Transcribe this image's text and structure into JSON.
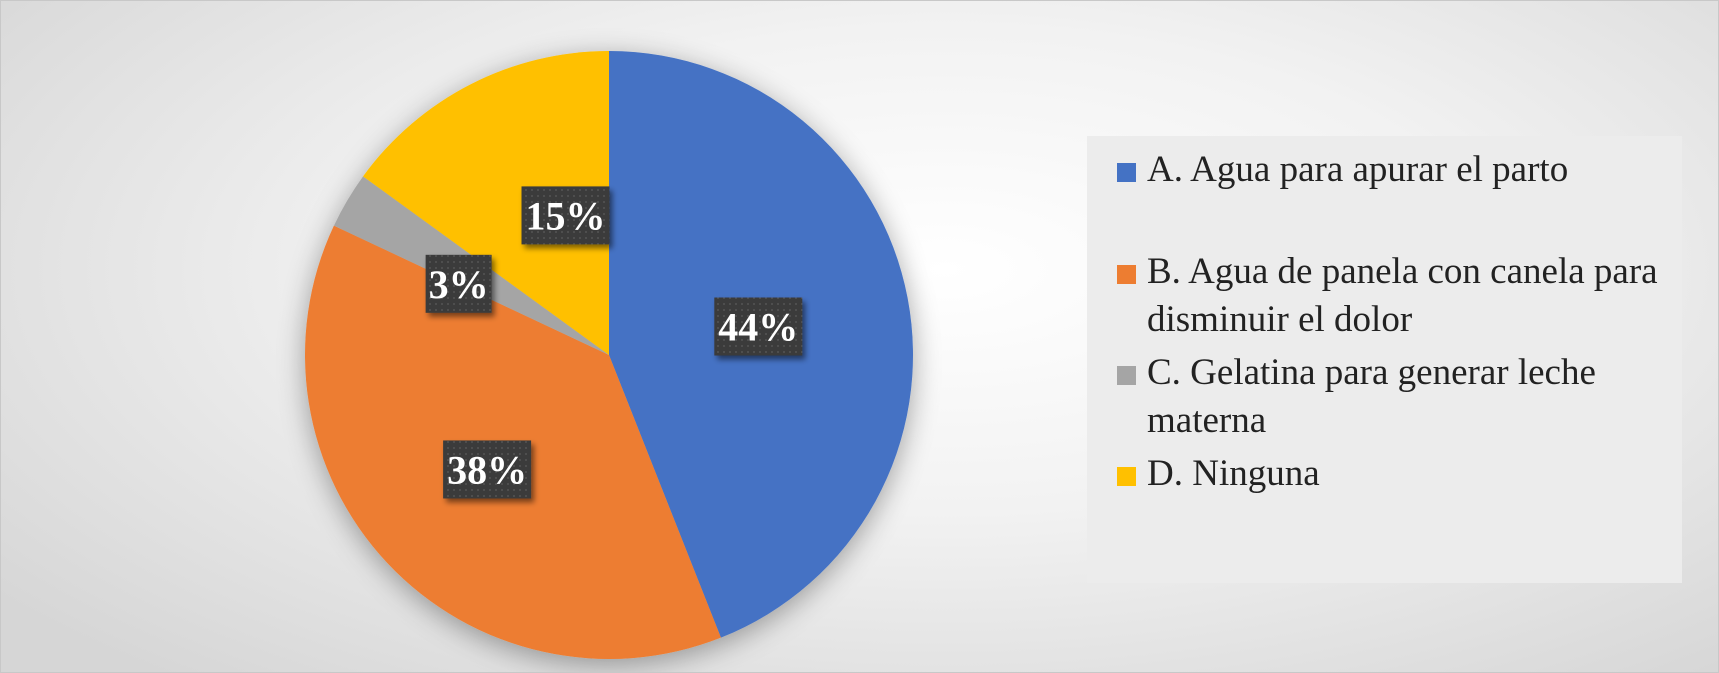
{
  "chart_data": {
    "type": "pie",
    "title": "",
    "slices": [
      {
        "label": "A. Agua para apurar el parto",
        "value": 44,
        "display": "44%",
        "color": "#4472C4"
      },
      {
        "label": "B. Agua de panela con canela para disminuir el dolor",
        "value": 38,
        "display": "38%",
        "color": "#ED7D31"
      },
      {
        "label": "C. Gelatina para generar leche materna",
        "value": 3,
        "display": "3%",
        "color": "#A5A5A5"
      },
      {
        "label": "D. Ninguna",
        "value": 15,
        "display": "15%",
        "color": "#FFC000"
      }
    ],
    "legend_position": "right"
  }
}
